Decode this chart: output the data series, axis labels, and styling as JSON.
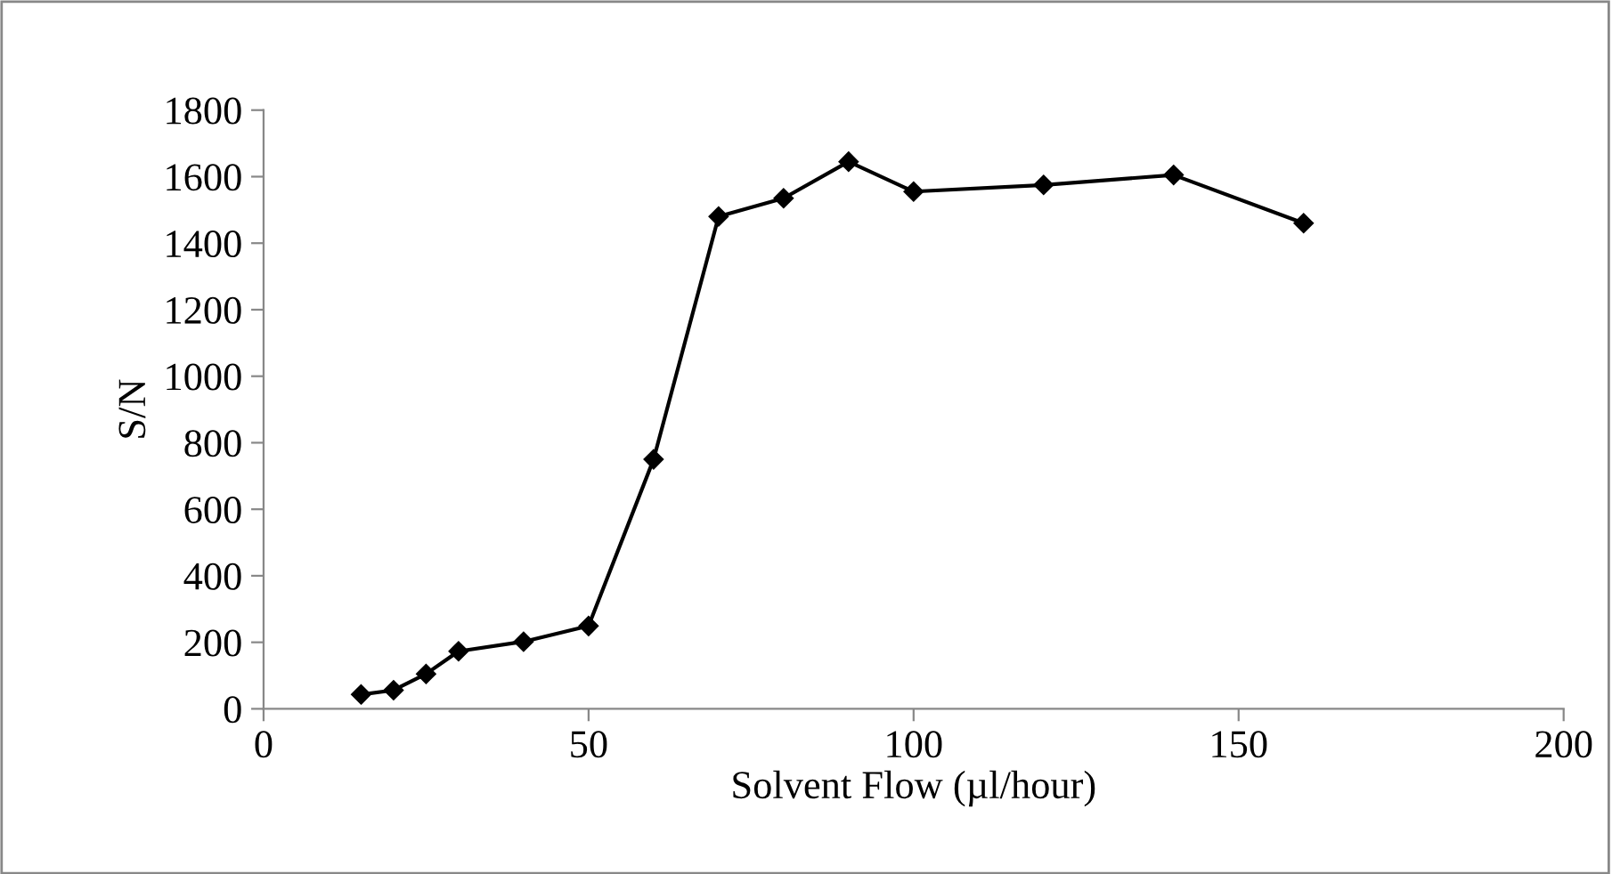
{
  "chart_data": {
    "type": "line",
    "xlabel": "Solvent Flow (µl/hour)",
    "ylabel": "S/N",
    "x": [
      15,
      20,
      25,
      30,
      40,
      50,
      60,
      70,
      80,
      90,
      100,
      120,
      140,
      160
    ],
    "series": [
      {
        "color": "#000000",
        "values": [
          43,
          56,
          105,
          173,
          202,
          249,
          750,
          1480,
          1535,
          1645,
          1555,
          1575,
          1605,
          1460
        ]
      }
    ],
    "xlim": [
      0,
      200
    ],
    "xticks": [
      0,
      50,
      100,
      150,
      200
    ],
    "ylim": [
      0,
      1800
    ],
    "yticks": [
      0,
      200,
      400,
      600,
      800,
      1000,
      1200,
      1400,
      1600,
      1800
    ],
    "grid": false,
    "legend": false,
    "marker": "diamond",
    "line_style": "solid"
  }
}
